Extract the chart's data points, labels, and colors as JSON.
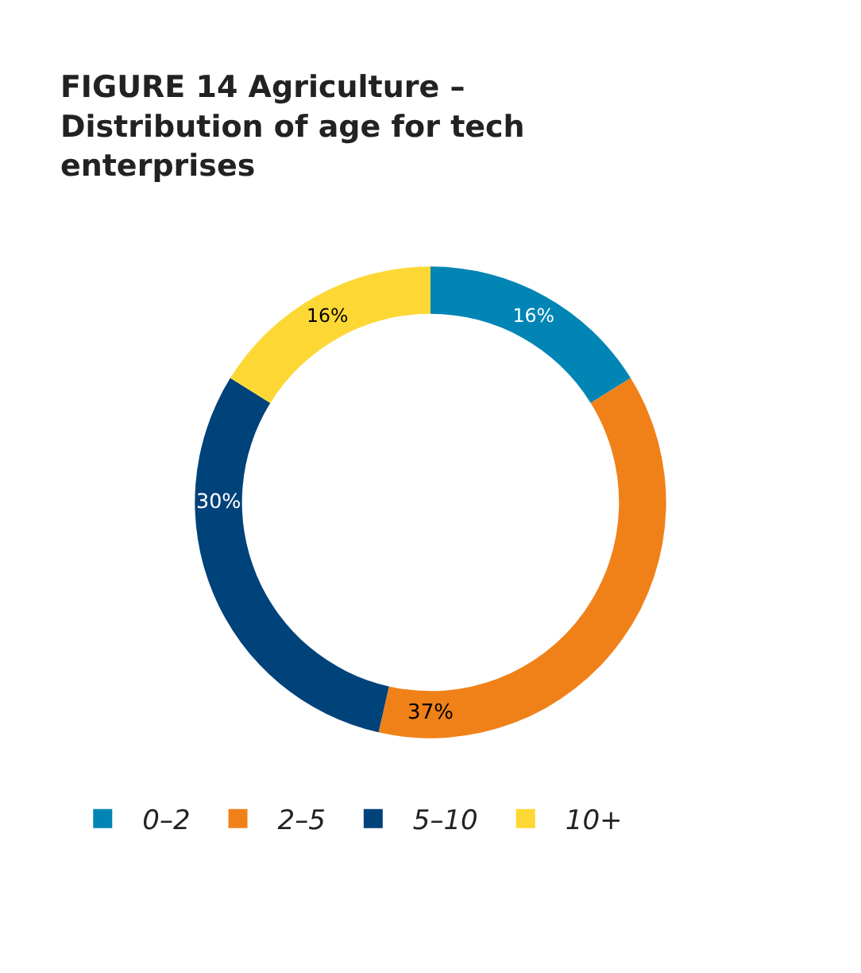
{
  "chart_data": {
    "type": "donut",
    "title": "FIGURE 14 Agriculture – Distribution of age for tech enterprises",
    "categories": [
      "0–2",
      "2–5",
      "5–10",
      "10+"
    ],
    "values": [
      16,
      37,
      30,
      16
    ],
    "value_labels": [
      "16%",
      "37%",
      "30%",
      "16%"
    ],
    "colors": [
      "#0085b5",
      "#f08119",
      "#00427a",
      "#fdd835"
    ],
    "legend": "bottom"
  }
}
